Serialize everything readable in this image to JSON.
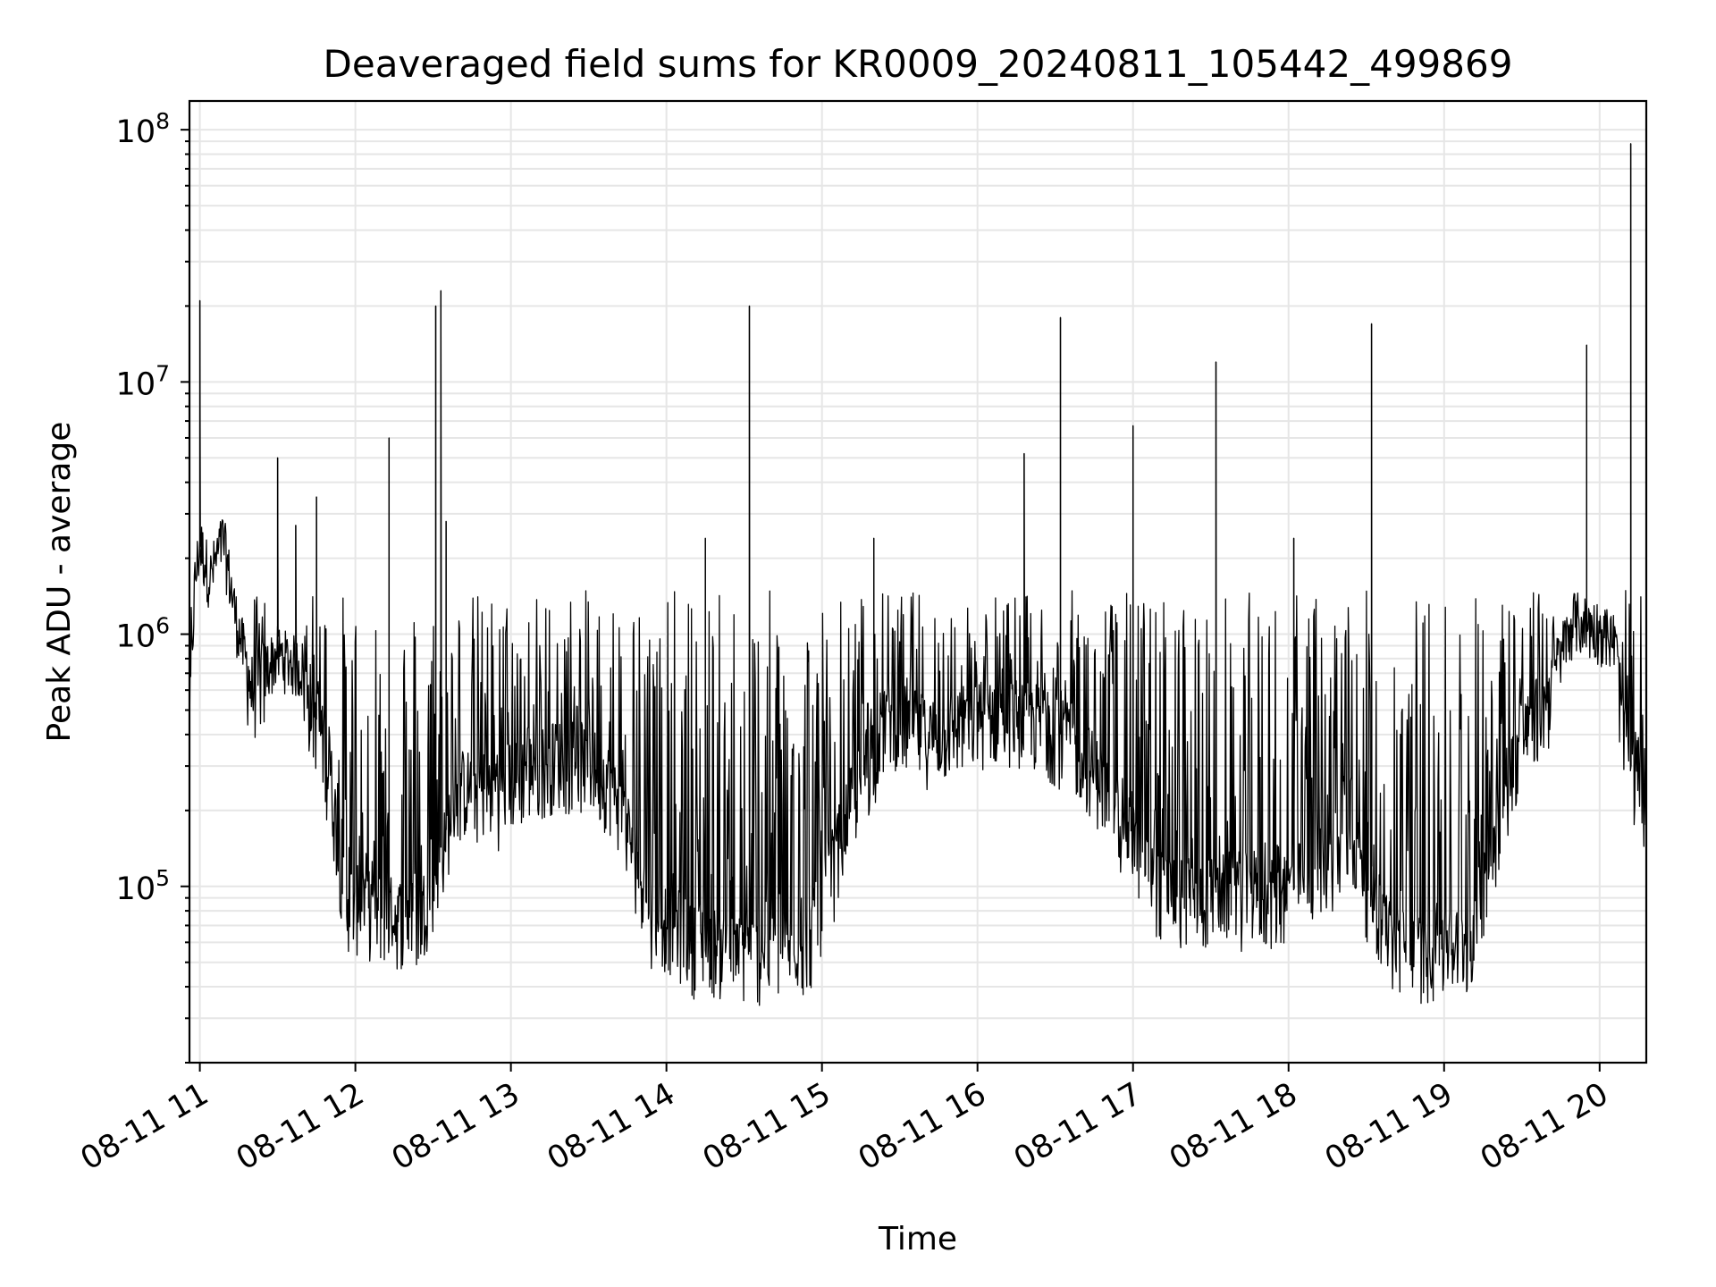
{
  "chart_data": {
    "type": "line",
    "title": "Deaveraged field sums for KR0009_20240811_105442_499869",
    "xlabel": "Time",
    "ylabel": "Peak ADU - average",
    "x_tick_labels": [
      "08-11 11",
      "08-11 12",
      "08-11 13",
      "08-11 14",
      "08-11 15",
      "08-11 16",
      "08-11 17",
      "08-11 18",
      "08-11 19",
      "08-11 20"
    ],
    "x_range": [
      "2024-08-11 10:56",
      "2024-08-11 20:18"
    ],
    "y_scale": "log",
    "ylim": [
      20000,
      130000000
    ],
    "y_ticks": [
      {
        "base": "10",
        "exp": "5",
        "value": 100000
      },
      {
        "base": "10",
        "exp": "6",
        "value": 1000000
      },
      {
        "base": "10",
        "exp": "7",
        "value": 10000000
      },
      {
        "base": "10",
        "exp": "8",
        "value": 100000000
      }
    ],
    "grid": true,
    "line_color": "#000000",
    "grid_color": "#e6e6e6",
    "series": [
      {
        "points": [
          [
            "2024-08-11 10:56",
            450000
          ],
          [
            "2024-08-11 10:58",
            1500000
          ],
          [
            "2024-08-11 11:00",
            2200000
          ],
          [
            "2024-08-11 11:04",
            1600000
          ],
          [
            "2024-08-11 11:09",
            2300000
          ],
          [
            "2024-08-11 11:14",
            1100000
          ],
          [
            "2024-08-11 11:20",
            600000
          ],
          [
            "2024-08-11 11:30",
            800000
          ],
          [
            "2024-08-11 11:40",
            700000
          ],
          [
            "2024-08-11 11:50",
            300000
          ],
          [
            "2024-08-11 11:56",
            90000
          ],
          [
            "2024-08-11 12:10",
            80000
          ],
          [
            "2024-08-11 12:25",
            75000
          ],
          [
            "2024-08-11 12:40",
            250000
          ],
          [
            "2024-08-11 12:55",
            250000
          ],
          [
            "2024-08-11 13:10",
            300000
          ],
          [
            "2024-08-11 13:25",
            350000
          ],
          [
            "2024-08-11 13:40",
            250000
          ],
          [
            "2024-08-11 13:55",
            80000
          ],
          [
            "2024-08-11 14:10",
            65000
          ],
          [
            "2024-08-11 14:25",
            55000
          ],
          [
            "2024-08-11 14:40",
            55000
          ],
          [
            "2024-08-11 14:55",
            60000
          ],
          [
            "2024-08-11 15:10",
            200000
          ],
          [
            "2024-08-11 15:25",
            500000
          ],
          [
            "2024-08-11 15:40",
            400000
          ],
          [
            "2024-08-11 15:55",
            450000
          ],
          [
            "2024-08-11 16:10",
            500000
          ],
          [
            "2024-08-11 16:25",
            450000
          ],
          [
            "2024-08-11 16:40",
            350000
          ],
          [
            "2024-08-11 16:55",
            200000
          ],
          [
            "2024-08-11 17:10",
            100000
          ],
          [
            "2024-08-11 17:25",
            90000
          ],
          [
            "2024-08-11 17:40",
            100000
          ],
          [
            "2024-08-11 17:55",
            90000
          ],
          [
            "2024-08-11 18:10",
            120000
          ],
          [
            "2024-08-11 18:25",
            150000
          ],
          [
            "2024-08-11 18:40",
            60000
          ],
          [
            "2024-08-11 18:55",
            55000
          ],
          [
            "2024-08-11 19:10",
            60000
          ],
          [
            "2024-08-11 19:25",
            300000
          ],
          [
            "2024-08-11 19:40",
            600000
          ],
          [
            "2024-08-11 19:50",
            1100000
          ],
          [
            "2024-08-11 20:00",
            1000000
          ],
          [
            "2024-08-11 20:06",
            900000
          ],
          [
            "2024-08-11 20:10",
            350000
          ],
          [
            "2024-08-11 20:18",
            250000
          ]
        ],
        "spikes": [
          [
            "2024-08-11 11:00",
            21000000
          ],
          [
            "2024-08-11 11:30",
            5000000
          ],
          [
            "2024-08-11 11:37",
            2700000
          ],
          [
            "2024-08-11 11:45",
            3500000
          ],
          [
            "2024-08-11 12:13",
            6000000
          ],
          [
            "2024-08-11 12:31",
            20000000
          ],
          [
            "2024-08-11 12:33",
            23000000
          ],
          [
            "2024-08-11 12:35",
            2800000
          ],
          [
            "2024-08-11 14:15",
            2400000
          ],
          [
            "2024-08-11 14:32",
            20000000
          ],
          [
            "2024-08-11 15:20",
            2400000
          ],
          [
            "2024-08-11 16:18",
            5200000
          ],
          [
            "2024-08-11 16:32",
            18000000
          ],
          [
            "2024-08-11 17:00",
            6700000
          ],
          [
            "2024-08-11 17:32",
            12000000
          ],
          [
            "2024-08-11 18:02",
            2400000
          ],
          [
            "2024-08-11 18:32",
            17000000
          ],
          [
            "2024-08-11 19:55",
            14000000
          ],
          [
            "2024-08-11 20:12",
            88000000
          ]
        ]
      }
    ]
  }
}
